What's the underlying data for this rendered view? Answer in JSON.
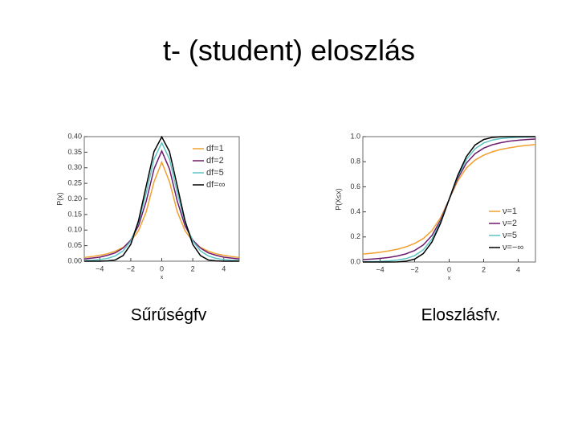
{
  "slide": {
    "title": "t- (student) eloszlás"
  },
  "chart_data": [
    {
      "type": "line",
      "caption": "Sűrűségfv",
      "x_label": "x",
      "y_label": "P(x)",
      "legend": "upper right",
      "x": [
        -5,
        -4.5,
        -4,
        -3.5,
        -3,
        -2.5,
        -2,
        -1.5,
        -1,
        -0.5,
        0,
        0.5,
        1,
        1.5,
        2,
        2.5,
        3,
        3.5,
        4,
        4.5,
        5
      ],
      "xlim": [
        -5,
        5
      ],
      "xticks": [
        {
          "value": -4,
          "label": "−4"
        },
        {
          "value": -2,
          "label": "−2"
        },
        0,
        2,
        4
      ],
      "ylim": [
        0,
        0.4
      ],
      "yticks": [
        {
          "value": 0,
          "label": "0.00"
        },
        {
          "value": 0.05,
          "label": "0.05"
        },
        {
          "value": 0.1,
          "label": "0.10"
        },
        {
          "value": 0.15,
          "label": "0.15"
        },
        {
          "value": 0.2,
          "label": "0.20"
        },
        {
          "value": 0.25,
          "label": "0.25"
        },
        {
          "value": 0.3,
          "label": "0.30"
        },
        {
          "value": 0.35,
          "label": "0.35"
        },
        {
          "value": 0.4,
          "label": "0.40"
        }
      ],
      "series": [
        {
          "name": "df=1",
          "color": "#f0a030",
          "values": [
            0.012,
            0.015,
            0.019,
            0.024,
            0.032,
            0.044,
            0.064,
            0.098,
            0.159,
            0.255,
            0.318,
            0.255,
            0.159,
            0.098,
            0.064,
            0.044,
            0.032,
            0.024,
            0.019,
            0.015,
            0.012
          ]
        },
        {
          "name": "df=2",
          "color": "#6e1a6e",
          "values": [
            0.007,
            0.01,
            0.013,
            0.019,
            0.027,
            0.042,
            0.068,
            0.114,
            0.193,
            0.296,
            0.354,
            0.296,
            0.193,
            0.114,
            0.068,
            0.042,
            0.027,
            0.019,
            0.013,
            0.01,
            0.007
          ]
        },
        {
          "name": "df=5",
          "color": "#5cc4c4",
          "values": [
            0.002,
            0.003,
            0.005,
            0.009,
            0.017,
            0.033,
            0.065,
            0.125,
            0.22,
            0.328,
            0.38,
            0.328,
            0.22,
            0.125,
            0.065,
            0.033,
            0.017,
            0.009,
            0.005,
            0.003,
            0.002
          ]
        },
        {
          "name": "df=∞",
          "color": "#000000",
          "values": [
            0.0,
            0.0,
            0.0,
            0.001,
            0.004,
            0.018,
            0.054,
            0.13,
            0.242,
            0.352,
            0.399,
            0.352,
            0.242,
            0.13,
            0.054,
            0.018,
            0.004,
            0.001,
            0.0,
            0.0,
            0.0
          ]
        }
      ]
    },
    {
      "type": "line",
      "caption": "Eloszlásfv.",
      "x_label": "x",
      "y_label": "P(X≤x)",
      "legend": "lower right",
      "x": [
        -5,
        -4.5,
        -4,
        -3.5,
        -3,
        -2.5,
        -2,
        -1.5,
        -1,
        -0.5,
        0,
        0.5,
        1,
        1.5,
        2,
        2.5,
        3,
        3.5,
        4,
        4.5,
        5
      ],
      "xlim": [
        -5,
        5
      ],
      "xticks": [
        {
          "value": -4,
          "label": "−4"
        },
        {
          "value": -2,
          "label": "−2"
        },
        0,
        2,
        4
      ],
      "ylim": [
        0,
        1
      ],
      "yticks": [
        {
          "value": 0,
          "label": "0.0"
        },
        {
          "value": 0.2,
          "label": "0.2"
        },
        {
          "value": 0.4,
          "label": "0.4"
        },
        {
          "value": 0.6,
          "label": "0.6"
        },
        {
          "value": 0.8,
          "label": "0.8"
        },
        {
          "value": 1,
          "label": "1.0"
        }
      ],
      "series": [
        {
          "name": "ν=1",
          "color": "#f0a030",
          "values": [
            0.063,
            0.07,
            0.078,
            0.089,
            0.102,
            0.121,
            0.148,
            0.187,
            0.25,
            0.352,
            0.5,
            0.648,
            0.75,
            0.813,
            0.852,
            0.879,
            0.898,
            0.911,
            0.922,
            0.93,
            0.937
          ]
        },
        {
          "name": "ν=2",
          "color": "#6e1a6e",
          "values": [
            0.019,
            0.023,
            0.029,
            0.036,
            0.048,
            0.065,
            0.092,
            0.136,
            0.211,
            0.333,
            0.5,
            0.667,
            0.789,
            0.864,
            0.908,
            0.935,
            0.952,
            0.964,
            0.971,
            0.977,
            0.981
          ]
        },
        {
          "name": "ν=5",
          "color": "#5cc4c4",
          "values": [
            0.002,
            0.003,
            0.005,
            0.009,
            0.015,
            0.027,
            0.051,
            0.097,
            0.182,
            0.319,
            0.5,
            0.681,
            0.818,
            0.903,
            0.949,
            0.973,
            0.985,
            0.991,
            0.995,
            0.997,
            0.998
          ]
        },
        {
          "name": "ν=−∞",
          "color": "#000000",
          "values": [
            0.0,
            0.0,
            0.0,
            0.0,
            0.001,
            0.006,
            0.023,
            0.067,
            0.159,
            0.309,
            0.5,
            0.691,
            0.841,
            0.933,
            0.977,
            0.994,
            0.999,
            1.0,
            1.0,
            1.0,
            1.0
          ]
        }
      ]
    }
  ]
}
